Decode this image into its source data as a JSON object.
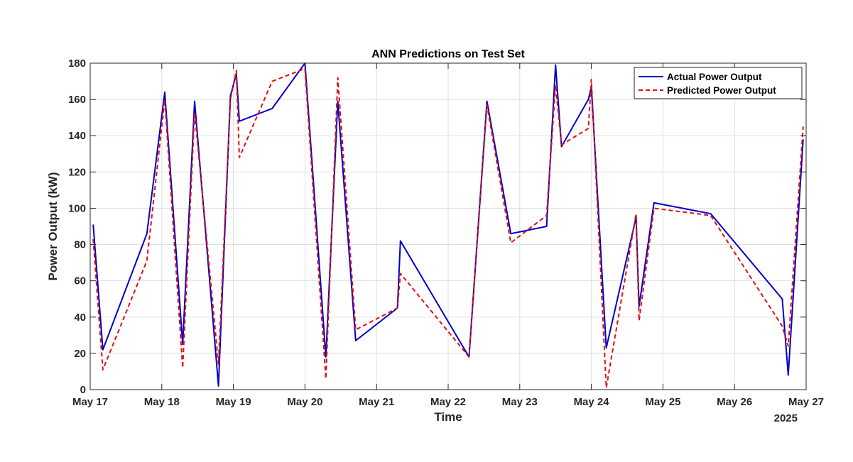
{
  "chart_data": {
    "type": "line",
    "title": "ANN Predictions on Test Set",
    "xlabel": "Time",
    "ylabel": "Power Output (kW)",
    "x_axis_year": "2025",
    "xlim": [
      "2025-05-17T00:00",
      "2025-05-27T00:00"
    ],
    "ylim": [
      0,
      180
    ],
    "x_tick_labels": [
      "May 17",
      "May 18",
      "May 19",
      "May 20",
      "May 21",
      "May 22",
      "May 23",
      "May 24",
      "May 25",
      "May 26",
      "May 27"
    ],
    "y_ticks": [
      0,
      20,
      40,
      60,
      80,
      100,
      120,
      140,
      160,
      180
    ],
    "grid": true,
    "legend_position": "top-right",
    "colors": {
      "actual": "#0000cc",
      "predicted": "#e01010"
    },
    "series": [
      {
        "name": "Actual Power Output",
        "style": "solid",
        "points": [
          [
            "2025-05-17T01:00",
            91
          ],
          [
            "2025-05-17T04:15",
            22
          ],
          [
            "2025-05-17T19:00",
            86
          ],
          [
            "2025-05-18T01:00",
            164
          ],
          [
            "2025-05-18T07:00",
            25
          ],
          [
            "2025-05-18T11:00",
            159
          ],
          [
            "2025-05-18T19:00",
            2
          ],
          [
            "2025-05-18T23:00",
            162
          ],
          [
            "2025-05-19T01:00",
            174
          ],
          [
            "2025-05-19T02:00",
            148
          ],
          [
            "2025-05-19T13:00",
            155
          ],
          [
            "2025-05-20T00:00",
            180
          ],
          [
            "2025-05-20T07:00",
            18
          ],
          [
            "2025-05-20T11:00",
            159
          ],
          [
            "2025-05-20T17:00",
            27
          ],
          [
            "2025-05-21T07:00",
            45
          ],
          [
            "2025-05-21T08:00",
            82
          ],
          [
            "2025-05-22T07:00",
            18
          ],
          [
            "2025-05-22T13:00",
            159
          ],
          [
            "2025-05-22T21:00",
            86
          ],
          [
            "2025-05-23T09:00",
            90
          ],
          [
            "2025-05-23T12:00",
            179
          ],
          [
            "2025-05-23T14:00",
            134
          ],
          [
            "2025-05-23T23:00",
            160
          ],
          [
            "2025-05-24T00:00",
            167
          ],
          [
            "2025-05-24T05:00",
            23
          ],
          [
            "2025-05-24T15:00",
            95
          ],
          [
            "2025-05-24T16:00",
            46
          ],
          [
            "2025-05-24T21:00",
            103
          ],
          [
            "2025-05-25T16:00",
            97
          ],
          [
            "2025-05-26T16:00",
            50
          ],
          [
            "2025-05-26T18:00",
            8
          ],
          [
            "2025-05-26T23:00",
            138
          ]
        ]
      },
      {
        "name": "Predicted Power Output",
        "style": "dashed",
        "points": [
          [
            "2025-05-17T01:00",
            83
          ],
          [
            "2025-05-17T04:15",
            11
          ],
          [
            "2025-05-17T19:00",
            71
          ],
          [
            "2025-05-18T01:00",
            160
          ],
          [
            "2025-05-18T07:00",
            12
          ],
          [
            "2025-05-18T11:00",
            153
          ],
          [
            "2025-05-18T19:00",
            14
          ],
          [
            "2025-05-18T23:00",
            160
          ],
          [
            "2025-05-19T01:00",
            176
          ],
          [
            "2025-05-19T02:00",
            128
          ],
          [
            "2025-05-19T13:00",
            170
          ],
          [
            "2025-05-20T00:00",
            177
          ],
          [
            "2025-05-20T07:00",
            6
          ],
          [
            "2025-05-20T11:00",
            172
          ],
          [
            "2025-05-20T17:00",
            33
          ],
          [
            "2025-05-21T07:00",
            45
          ],
          [
            "2025-05-21T08:00",
            64
          ],
          [
            "2025-05-22T07:00",
            18
          ],
          [
            "2025-05-22T13:00",
            157
          ],
          [
            "2025-05-22T21:00",
            81
          ],
          [
            "2025-05-23T09:00",
            96
          ],
          [
            "2025-05-23T12:00",
            168
          ],
          [
            "2025-05-23T14:00",
            135
          ],
          [
            "2025-05-23T23:00",
            144
          ],
          [
            "2025-05-24T00:00",
            171
          ],
          [
            "2025-05-24T05:00",
            1
          ],
          [
            "2025-05-24T15:00",
            97
          ],
          [
            "2025-05-24T16:00",
            38
          ],
          [
            "2025-05-24T21:00",
            100
          ],
          [
            "2025-05-25T16:00",
            96
          ],
          [
            "2025-05-26T16:00",
            35
          ],
          [
            "2025-05-26T18:00",
            24
          ],
          [
            "2025-05-26T23:00",
            145
          ]
        ]
      }
    ]
  }
}
